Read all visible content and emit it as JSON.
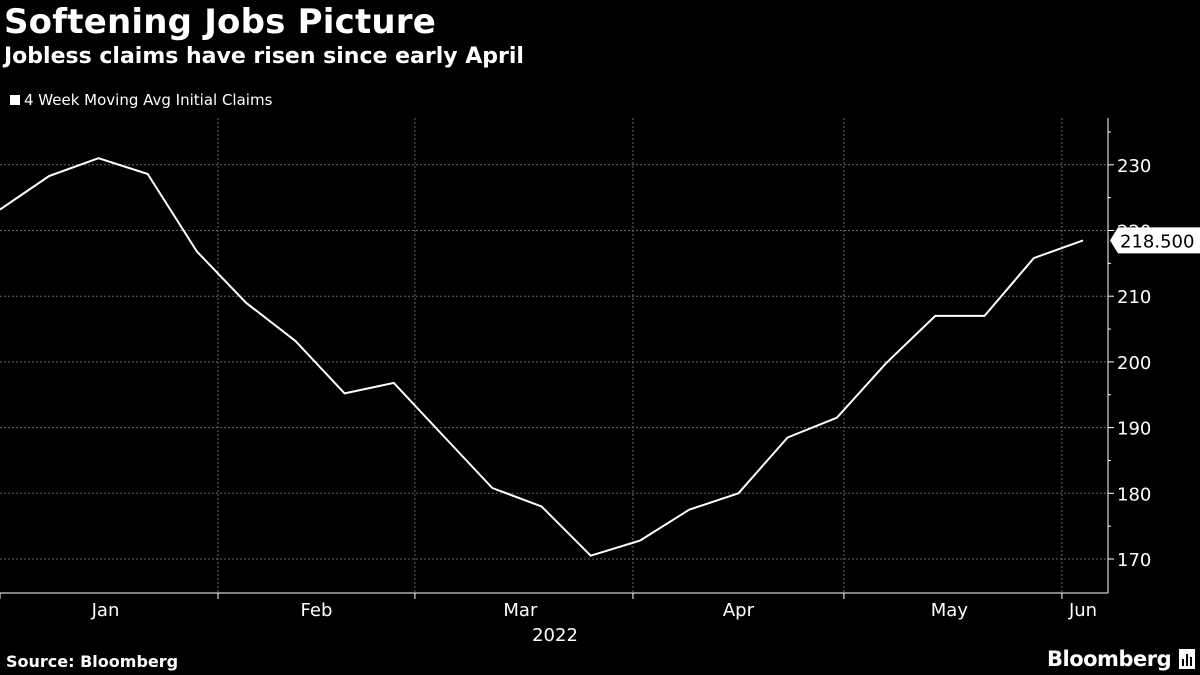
{
  "title": "Softening Jobs Picture",
  "subtitle": "Jobless claims have risen since early April",
  "source": "Source: Bloomberg",
  "brand": "Bloomberg",
  "brand_icon": "bloomberg-chart-icon",
  "colors": {
    "background": "#000000",
    "line": "#ffffff",
    "grid": "#666666",
    "text": "#ffffff"
  },
  "chart_data": {
    "type": "line",
    "title": "Softening Jobs Picture",
    "subtitle": "Jobless claims have risen since early April",
    "xlabel": "2022",
    "ylabel": "",
    "legend": "top-left",
    "grid": true,
    "x_ticks": [
      "Jan",
      "Feb",
      "Mar",
      "Apr",
      "May",
      "Jun"
    ],
    "y_ticks": [
      170,
      180,
      190,
      200,
      210,
      220,
      230
    ],
    "ylim": [
      165,
      237
    ],
    "last_value_label": "218.500",
    "series": [
      {
        "name": "4 Week Moving Avg Initial Claims",
        "x": [
          "2022-01-01",
          "2022-01-08",
          "2022-01-15",
          "2022-01-22",
          "2022-01-29",
          "2022-02-05",
          "2022-02-12",
          "2022-02-19",
          "2022-02-26",
          "2022-03-05",
          "2022-03-12",
          "2022-03-19",
          "2022-03-26",
          "2022-04-02",
          "2022-04-09",
          "2022-04-16",
          "2022-04-23",
          "2022-04-30",
          "2022-05-07",
          "2022-05-14",
          "2022-05-21",
          "2022-05-28",
          "2022-06-04"
        ],
        "values": [
          223.2,
          228.3,
          231.0,
          228.6,
          216.8,
          209.0,
          203.2,
          195.2,
          196.8,
          188.8,
          180.8,
          178.0,
          170.5,
          172.8,
          177.5,
          180.0,
          188.5,
          191.5,
          199.8,
          207.0,
          207.0,
          215.8,
          218.5
        ]
      }
    ]
  }
}
